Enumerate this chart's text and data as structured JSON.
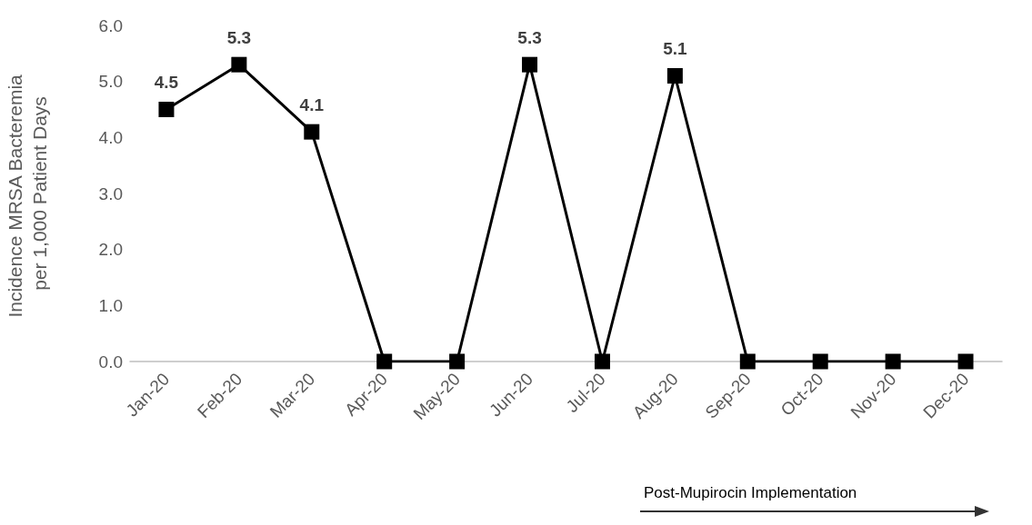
{
  "chart_data": {
    "type": "line",
    "ylabel": "Incidence MRSA Bacteremia per 1,000 Patient Days",
    "categories": [
      "Jan-20",
      "Feb-20",
      "Mar-20",
      "Apr-20",
      "May-20",
      "Jun-20",
      "Jul-20",
      "Aug-20",
      "Sep-20",
      "Oct-20",
      "Nov-20",
      "Dec-20"
    ],
    "series": [
      {
        "color": "#000000",
        "values": [
          4.5,
          5.3,
          4.1,
          0,
          0,
          5.3,
          0,
          5.1,
          0,
          0,
          0,
          0
        ],
        "value_labels": [
          "4.5",
          "5.3",
          "4.1",
          null,
          null,
          "5.3",
          null,
          "5.1",
          null,
          null,
          null,
          null
        ]
      }
    ],
    "ylim": [
      0,
      6
    ],
    "yticks": [
      {
        "value": 0,
        "label": "0.0"
      },
      {
        "value": 1,
        "label": "1.0"
      },
      {
        "value": 2,
        "label": "2.0"
      },
      {
        "value": 3,
        "label": "3.0"
      },
      {
        "value": 4,
        "label": "4.0"
      },
      {
        "value": 5,
        "label": "5.0"
      },
      {
        "value": 6,
        "label": "6.0"
      }
    ],
    "marker": "square",
    "line_style": "solid",
    "grid": false,
    "annotations": [
      "Post-Mupirocin Implementation"
    ]
  }
}
